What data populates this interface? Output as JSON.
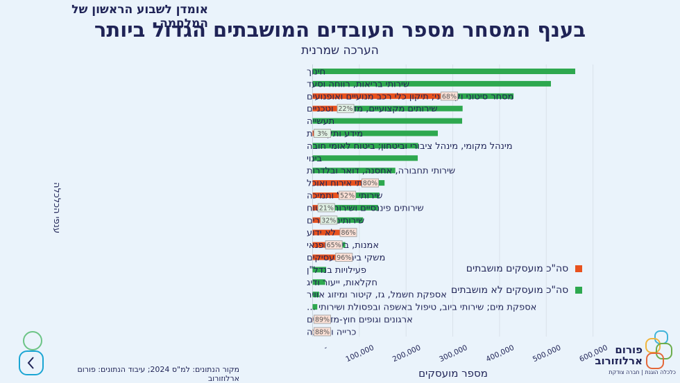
{
  "header": {
    "kicker": "אומדן לשבוע הראשון של המלחמה",
    "title": "בענף המסחר מספר העובדים המושבתים הגדול ביותר",
    "subtitle": "הערכה שמרנית"
  },
  "colors": {
    "mobilized": "#e8521e",
    "not_mobilized": "#2ea84f",
    "text": "#1f2356",
    "background": "#eaf3fb"
  },
  "chart_data": {
    "type": "bar",
    "orientation": "horizontal",
    "stacked": true,
    "title": "בענף המסחר מספר העובדים המושבתים הגדול ביותר",
    "subtitle": "הערכה שמרנית",
    "xlabel": "מספר מועסקים",
    "ylabel": "ענפי הכלכלה",
    "xlim": [
      0,
      600000
    ],
    "xticks": [
      0,
      100000,
      200000,
      300000,
      400000,
      500000,
      600000
    ],
    "xtick_labels": [
      "-",
      "100,000",
      "200,000",
      "300,000",
      "400,000",
      "500,000",
      "600,000"
    ],
    "grid": true,
    "legend_position": "right",
    "legend": [
      "סה\"כ מועסקים מושבתים",
      "סה\"כ מועסקים לא מושבתים"
    ],
    "categories": [
      "חינוך",
      "שירותי בריאות, רווחה וסעד",
      "מסחר סיטוני וקמעוני; תיקון כלי רכב מנועיים ואופנועים",
      "שירותים מקצועיים, מדעיים וטכניים",
      "תעשייה",
      "מידע ותקשורת",
      "מינהל מקומי, מינהל ציבורי וביטחון; ביטוח לאומי חובה",
      "בינוי",
      "שירותי תחבורה, אחסנה, דואר ובלדרות",
      "שירותי אירוח ואוכל",
      "שירותי ניהול ותמיכה",
      "שירותים פיננסיים ושירותי ביטוח",
      "שירותים אחרים",
      "לא ידוע",
      "אמנות, בידור ופנאי",
      "משקי בית כמעסיקים",
      "פעילויות בנדל\"ן",
      "חקלאות, ייעור ודיג",
      "אספקת חשמל, גז, קיטור ומיזוג אוויר",
      "אספקת מים; שירותי ביוב, טיפול באשפה ובפסולת ושירותי …",
      "ארגונים וגופים חוץ-מדינתיים",
      "כרייה וחציבה"
    ],
    "totals": [
      562000,
      510000,
      430000,
      321000,
      320000,
      268000,
      226000,
      225000,
      177000,
      154000,
      143000,
      140000,
      108000,
      89000,
      70000,
      70000,
      29000,
      27000,
      14000,
      10000,
      500,
      500
    ],
    "mobilized_share_labels": [
      null,
      null,
      "68%",
      "22%",
      null,
      "3%",
      null,
      null,
      null,
      "80%",
      "52%",
      "21%",
      "32%",
      "86%",
      "65%",
      "96%",
      null,
      null,
      null,
      null,
      "89%",
      "88%"
    ],
    "mobilized_share": [
      0,
      0,
      0.68,
      0.22,
      0,
      0.03,
      0,
      0,
      0,
      0.8,
      0.52,
      0.21,
      0.32,
      0.86,
      0.65,
      0.96,
      0,
      0,
      0,
      0,
      0.89,
      0.88
    ],
    "series": [
      {
        "name": "סה\"כ מועסקים מושבתים",
        "color": "#e8521e",
        "values": [
          0,
          0,
          292400,
          70620,
          0,
          8040,
          0,
          0,
          0,
          123200,
          74360,
          29400,
          34560,
          76540,
          45500,
          67200,
          0,
          0,
          0,
          0,
          445,
          440
        ]
      },
      {
        "name": "סה\"כ מועסקים לא מושבתים",
        "color": "#2ea84f",
        "values": [
          562000,
          510000,
          137600,
          250380,
          320000,
          259960,
          226000,
          225000,
          177000,
          30800,
          68640,
          110600,
          73440,
          12460,
          24500,
          2800,
          29000,
          27000,
          14000,
          10000,
          55,
          60
        ]
      }
    ]
  },
  "footer": {
    "source": "מקור הנתונים: למ\"ס 2024; עיבוד הנתונים: פורום ארלוזורוב"
  },
  "logo": {
    "line1": "פורום",
    "line2": "ארלוזורוב",
    "tagline": "כלכלה הוגנת | חברה צודקת"
  },
  "nav": {
    "back_icon": "chevron-left-icon"
  }
}
